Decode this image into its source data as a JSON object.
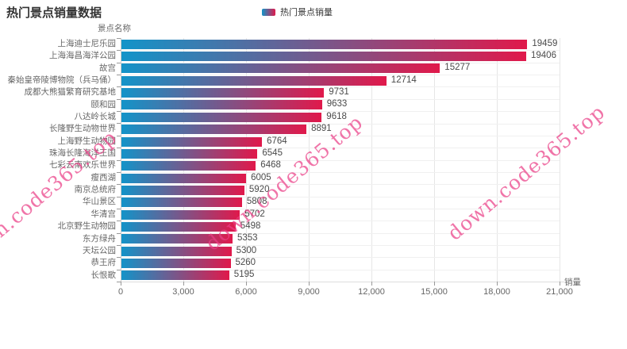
{
  "title": "热门景点销量数据",
  "legend": {
    "label": "热门景点销量"
  },
  "watermark": {
    "text": "down.code365.top"
  },
  "axes": {
    "x_name": "销量",
    "y_name": "景点名称"
  },
  "colors": {
    "bar_gradient_start": "#1294c9",
    "bar_gradient_end": "#e0194b",
    "grid_line": "#e6e6e6",
    "row_line": "#f0f0f0",
    "axis_line": "#cccccc",
    "tick": "#999999",
    "title_text": "#333333",
    "label_text": "#666666",
    "value_text": "#4a4a4a",
    "watermark_pink": "#ea3e86"
  },
  "chart_data": {
    "type": "bar",
    "orientation": "horizontal",
    "title": "热门景点销量数据",
    "series_name": "热门景点销量",
    "xlabel": "销量",
    "ylabel": "景点名称",
    "xlim": [
      0,
      21000
    ],
    "x_ticks": [
      0,
      3000,
      6000,
      9000,
      12000,
      15000,
      18000,
      21000
    ],
    "x_tick_labels": [
      "0",
      "3,000",
      "6,000",
      "9,000",
      "12,000",
      "15,000",
      "18,000",
      "21,000"
    ],
    "grid": true,
    "legend_position": "top",
    "bar_color_gradient": [
      "#1294c9",
      "#e0194b"
    ],
    "categories": [
      "上海迪士尼乐园",
      "上海海昌海洋公园",
      "故宫",
      "秦始皇帝陵博物院（兵马俑）",
      "成都大熊猫繁育研究基地",
      "颐和园",
      "八达岭长城",
      "长隆野生动物世界",
      "上海野生动物园",
      "珠海长隆海洋王国",
      "七彩云南欢乐世界",
      "瘦西湖",
      "南京总统府",
      "华山景区",
      "华清宫",
      "北京野生动物园",
      "东方绿舟",
      "天坛公园",
      "恭王府",
      "长恨歌"
    ],
    "values": [
      19459,
      19406,
      15277,
      12714,
      9731,
      9633,
      9618,
      8891,
      6764,
      6545,
      6468,
      6005,
      5920,
      5808,
      5702,
      5498,
      5353,
      5300,
      5260,
      5195
    ]
  }
}
